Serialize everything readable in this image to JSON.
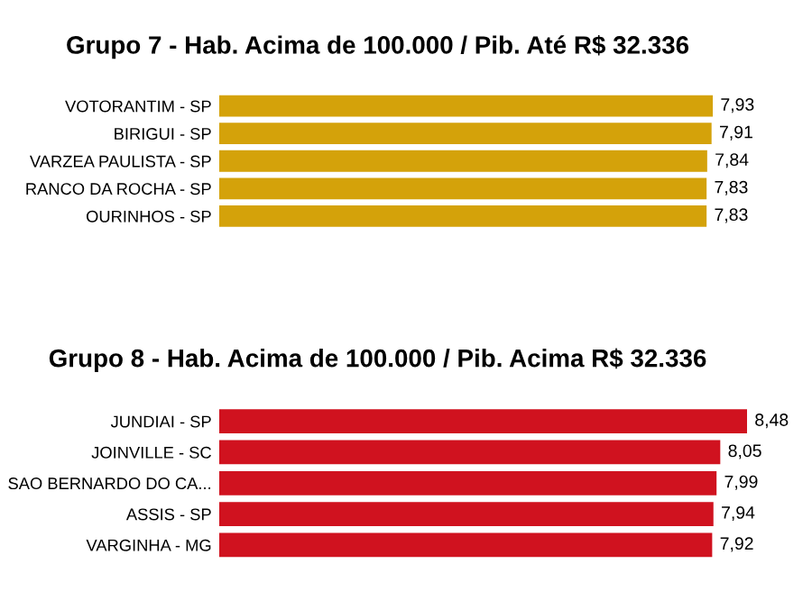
{
  "chart_data": [
    {
      "type": "bar",
      "orientation": "horizontal",
      "title": "Grupo 7 - Hab. Acima de 100.000 / Pib. Até R$ 32.336",
      "categories": [
        "VOTORANTIM - SP",
        "BIRIGUI - SP",
        "VARZEA PAULISTA - SP",
        "RANCO DA ROCHA - SP",
        "OURINHOS - SP"
      ],
      "values": [
        7.93,
        7.91,
        7.84,
        7.83,
        7.83
      ],
      "value_labels": [
        "7,93",
        "7,91",
        "7,84",
        "7,83",
        "7,83"
      ],
      "color": "#d4a20a"
    },
    {
      "type": "bar",
      "orientation": "horizontal",
      "title": "Grupo 8 - Hab. Acima de 100.000 / Pib. Acima R$ 32.336",
      "categories": [
        "JUNDIAI - SP",
        "JOINVILLE - SC",
        "SAO BERNARDO DO CA...",
        "ASSIS - SP",
        "VARGINHA - MG"
      ],
      "values": [
        8.48,
        8.05,
        7.99,
        7.94,
        7.92
      ],
      "value_labels": [
        "8,48",
        "8,05",
        "7,99",
        "7,94",
        "7,92"
      ],
      "color": "#d0121f"
    }
  ]
}
